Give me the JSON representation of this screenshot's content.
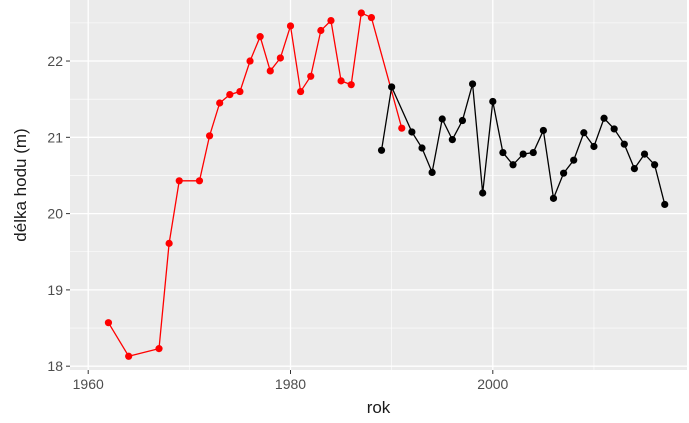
{
  "chart_data": {
    "type": "line",
    "title": "",
    "xlabel": "rok",
    "ylabel": "délka hodu (m)",
    "xlim": [
      1958.2,
      2019.2
    ],
    "ylim": [
      17.95,
      22.8
    ],
    "x_ticks": [
      1960,
      1980,
      2000
    ],
    "y_ticks": [
      18,
      19,
      20,
      21,
      22
    ],
    "grid": true,
    "legend": "none",
    "background_color": "#ebebeb",
    "grid_color": "#ffffff",
    "series": [
      {
        "color": "#ff0000",
        "points": [
          {
            "x": 1962,
            "y": 18.57
          },
          {
            "x": 1964,
            "y": 18.13
          },
          {
            "x": 1967,
            "y": 18.23
          },
          {
            "x": 1968,
            "y": 19.61
          },
          {
            "x": 1969,
            "y": 20.43
          },
          {
            "x": 1971,
            "y": 20.43
          },
          {
            "x": 1972,
            "y": 21.02
          },
          {
            "x": 1973,
            "y": 21.45
          },
          {
            "x": 1974,
            "y": 21.56
          },
          {
            "x": 1975,
            "y": 21.6
          },
          {
            "x": 1976,
            "y": 22.0
          },
          {
            "x": 1977,
            "y": 22.32
          },
          {
            "x": 1978,
            "y": 21.87
          },
          {
            "x": 1979,
            "y": 22.04
          },
          {
            "x": 1980,
            "y": 22.46
          },
          {
            "x": 1981,
            "y": 21.6
          },
          {
            "x": 1982,
            "y": 21.8
          },
          {
            "x": 1983,
            "y": 22.4
          },
          {
            "x": 1984,
            "y": 22.53
          },
          {
            "x": 1985,
            "y": 21.74
          },
          {
            "x": 1986,
            "y": 21.69
          },
          {
            "x": 1987,
            "y": 22.63
          },
          {
            "x": 1988,
            "y": 22.57
          },
          {
            "x": 1991,
            "y": 21.12
          }
        ]
      },
      {
        "color": "#000000",
        "points": [
          {
            "x": 1989,
            "y": 20.83
          },
          {
            "x": 1990,
            "y": 21.66
          },
          {
            "x": 1992,
            "y": 21.07
          },
          {
            "x": 1993,
            "y": 20.86
          },
          {
            "x": 1994,
            "y": 20.54
          },
          {
            "x": 1995,
            "y": 21.24
          },
          {
            "x": 1996,
            "y": 20.97
          },
          {
            "x": 1997,
            "y": 21.22
          },
          {
            "x": 1998,
            "y": 21.7
          },
          {
            "x": 1999,
            "y": 20.27
          },
          {
            "x": 2000,
            "y": 21.47
          },
          {
            "x": 2001,
            "y": 20.8
          },
          {
            "x": 2002,
            "y": 20.64
          },
          {
            "x": 2003,
            "y": 20.78
          },
          {
            "x": 2004,
            "y": 20.8
          },
          {
            "x": 2005,
            "y": 21.09
          },
          {
            "x": 2006,
            "y": 20.2
          },
          {
            "x": 2007,
            "y": 20.53
          },
          {
            "x": 2008,
            "y": 20.7
          },
          {
            "x": 2009,
            "y": 21.06
          },
          {
            "x": 2010,
            "y": 20.88
          },
          {
            "x": 2011,
            "y": 21.25
          },
          {
            "x": 2012,
            "y": 21.11
          },
          {
            "x": 2013,
            "y": 20.91
          },
          {
            "x": 2014,
            "y": 20.59
          },
          {
            "x": 2015,
            "y": 20.78
          },
          {
            "x": 2016,
            "y": 20.64
          },
          {
            "x": 2017,
            "y": 20.12
          }
        ]
      }
    ]
  }
}
